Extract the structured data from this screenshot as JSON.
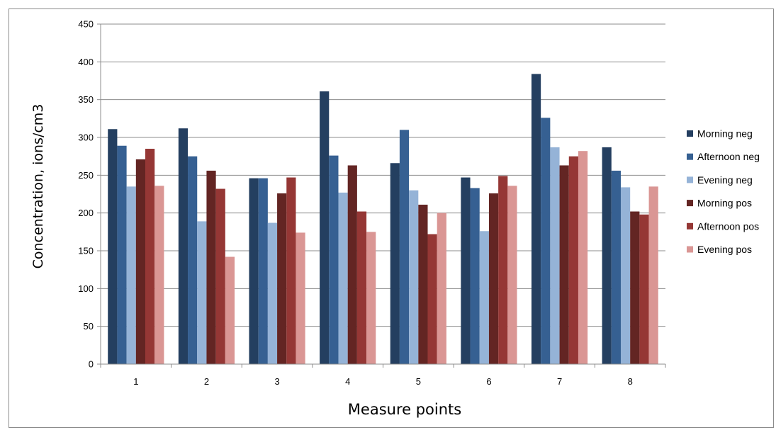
{
  "chart_data": {
    "type": "bar",
    "title": "",
    "xlabel": "Measure points",
    "ylabel": "Concentration, ions/cm3",
    "categories": [
      "1",
      "2",
      "3",
      "4",
      "5",
      "6",
      "7",
      "8"
    ],
    "ylim": [
      0,
      450
    ],
    "yticks": [
      "0",
      "50",
      "100",
      "150",
      "200",
      "250",
      "300",
      "350",
      "400",
      "450"
    ],
    "grid": true,
    "legend_position": "right",
    "series": [
      {
        "name": "Morning neg",
        "color": "#243f60",
        "values": [
          311,
          312,
          246,
          361,
          266,
          247,
          384,
          287
        ]
      },
      {
        "name": "Afternoon neg",
        "color": "#366092",
        "values": [
          289,
          275,
          246,
          276,
          310,
          233,
          326,
          256
        ]
      },
      {
        "name": "Evening neg",
        "color": "#95b3d7",
        "values": [
          235,
          189,
          187,
          227,
          230,
          176,
          287,
          234
        ]
      },
      {
        "name": "Morning pos",
        "color": "#632523",
        "values": [
          271,
          256,
          226,
          263,
          211,
          226,
          263,
          202
        ]
      },
      {
        "name": "Afternoon pos",
        "color": "#953735",
        "values": [
          285,
          232,
          247,
          202,
          172,
          249,
          275,
          198
        ]
      },
      {
        "name": "Evening pos",
        "color": "#da9694",
        "values": [
          236,
          142,
          174,
          175,
          200,
          236,
          282,
          235
        ]
      }
    ]
  }
}
